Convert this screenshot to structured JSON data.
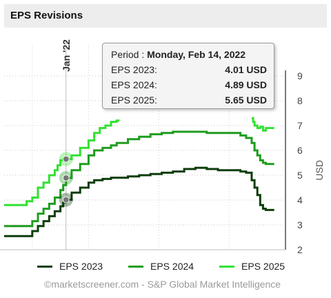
{
  "header": {
    "title": "EPS Revisions"
  },
  "tooltip": {
    "period_prefix": "Period : ",
    "period_value": "Monday, Feb 14, 2022",
    "rows": [
      {
        "label": "EPS 2023:",
        "value": "4.01 USD"
      },
      {
        "label": "EPS 2024:",
        "value": "4.89 USD"
      },
      {
        "label": "EPS 2025:",
        "value": "5.65 USD"
      }
    ]
  },
  "credit": "©marketscreener.com - S&P Global Market Intelligence",
  "chart_data": {
    "type": "line",
    "step": true,
    "ylabel": "USD",
    "ylim": [
      2,
      9
    ],
    "yticks": [
      2,
      3,
      4,
      5,
      6,
      7,
      8,
      9
    ],
    "xlim": [
      0,
      100
    ],
    "x_marker": {
      "label": "Jan '22",
      "x": 22
    },
    "highlight_x": 22,
    "grid": "dotted",
    "legend_position": "bottom",
    "series": [
      {
        "name": "EPS 2023",
        "color": "#0c3d0c",
        "x": [
          0,
          5,
          10,
          12,
          14,
          16,
          18,
          20,
          21,
          22,
          24,
          27,
          30,
          32,
          35,
          38,
          40,
          44,
          48,
          52,
          56,
          60,
          64,
          68,
          72,
          76,
          80,
          84,
          86,
          88,
          89,
          90,
          91,
          92,
          93,
          94,
          96
        ],
        "y": [
          2.55,
          2.55,
          2.75,
          2.95,
          3.15,
          3.35,
          3.55,
          3.75,
          3.9,
          4.01,
          4.3,
          4.5,
          4.7,
          4.8,
          4.85,
          4.9,
          4.9,
          4.95,
          5.0,
          5.05,
          5.1,
          5.15,
          5.25,
          5.3,
          5.25,
          5.2,
          5.2,
          5.15,
          5.1,
          4.8,
          4.5,
          4.2,
          3.8,
          3.65,
          3.6,
          3.6,
          3.6
        ]
      },
      {
        "name": "EPS 2024",
        "color": "#1e9c1e",
        "x": [
          0,
          5,
          10,
          12,
          14,
          16,
          18,
          20,
          21,
          22,
          24,
          27,
          30,
          32,
          35,
          38,
          40,
          44,
          48,
          52,
          56,
          60,
          64,
          68,
          72,
          76,
          80,
          84,
          86,
          88,
          89,
          90,
          91,
          92,
          93,
          94,
          96
        ],
        "y": [
          2.95,
          2.95,
          3.15,
          3.45,
          3.65,
          3.85,
          4.1,
          4.4,
          4.6,
          4.89,
          5.2,
          5.45,
          5.8,
          6.0,
          6.1,
          6.2,
          6.3,
          6.45,
          6.55,
          6.65,
          6.7,
          6.75,
          6.75,
          6.75,
          6.7,
          6.7,
          6.7,
          6.6,
          6.5,
          6.3,
          6.0,
          5.8,
          5.6,
          5.5,
          5.45,
          5.45,
          5.45
        ]
      },
      {
        "name": "EPS 2025",
        "color": "#33e033",
        "x": [
          0,
          5,
          8,
          10,
          12,
          14,
          16,
          18,
          19,
          20,
          21,
          22,
          24,
          27,
          30,
          32,
          34,
          36,
          38,
          40,
          41
        ],
        "y": [
          3.8,
          3.8,
          3.95,
          4.1,
          4.5,
          4.7,
          5.0,
          5.2,
          5.4,
          5.6,
          5.65,
          5.65,
          5.8,
          6.1,
          6.4,
          6.7,
          6.9,
          7.0,
          7.15,
          7.2,
          7.2
        ],
        "x2": [
          88,
          88.5,
          89,
          90,
          91,
          92,
          93,
          94,
          96
        ],
        "y2": [
          7.3,
          7.15,
          7.0,
          6.9,
          6.95,
          6.8,
          6.9,
          6.9,
          6.9
        ]
      }
    ]
  }
}
